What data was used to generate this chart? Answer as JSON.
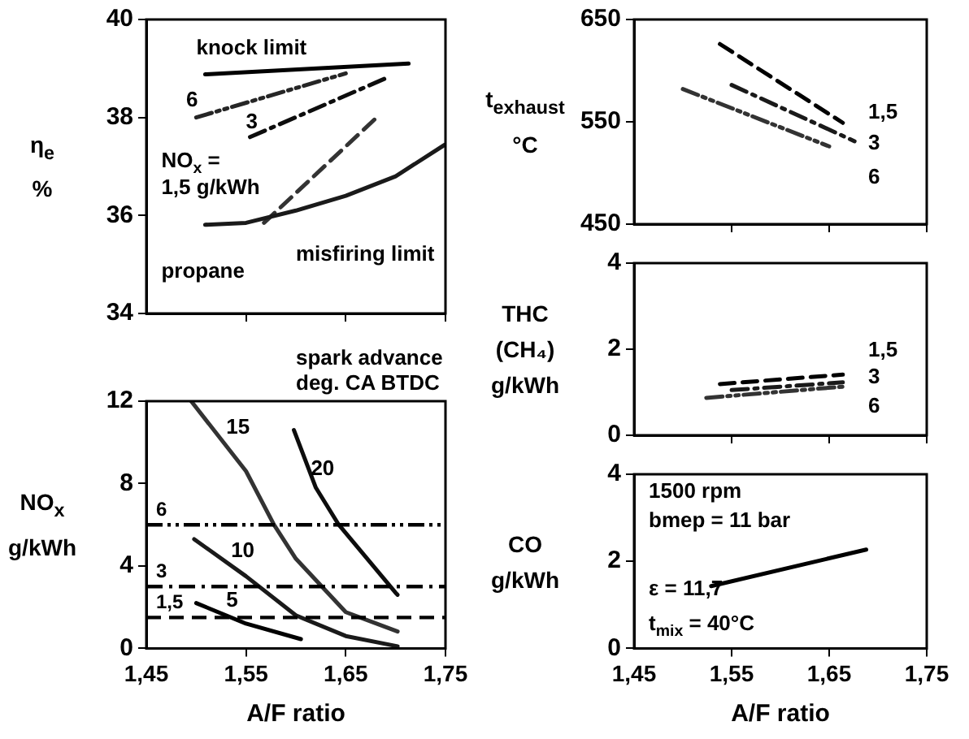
{
  "chart_data": [
    {
      "type": "line",
      "ylabel": "η$_{e}$ %",
      "xlim": [
        1.45,
        1.75
      ],
      "xticks": [
        {
          "value": 1.45,
          "label": null
        },
        {
          "value": 1.55,
          "label": null
        },
        {
          "value": 1.65,
          "label": null
        },
        {
          "value": 1.75,
          "label": null
        }
      ],
      "ylim": [
        34,
        40
      ],
      "yticks": [
        34,
        36,
        38,
        40
      ],
      "tick_labels": "y",
      "grid": false,
      "legend": false,
      "marker": "none",
      "series": [
        {
          "color": "#000000",
          "line_style": "solid",
          "x": [
            1.509,
            1.713
          ],
          "values": [
            38.88,
            39.1
          ]
        },
        {
          "color": "#1a1a1a",
          "line_style": "solid",
          "x": [
            1.509,
            1.55,
            1.6,
            1.65,
            1.7,
            1.749
          ],
          "values": [
            35.81,
            35.85,
            36.1,
            36.4,
            36.8,
            37.44
          ]
        },
        {
          "color": "#333333",
          "line_style": "dashed",
          "x": [
            1.568,
            1.681
          ],
          "values": [
            35.85,
            38.0
          ]
        },
        {
          "color": "#0d0d0d",
          "line_style": "dashdot",
          "x": [
            1.554,
            1.69
          ],
          "values": [
            37.6,
            38.8
          ]
        },
        {
          "color": "#262626",
          "line_style": "dashdotdot",
          "x": [
            1.5,
            1.65
          ],
          "values": [
            38.0,
            38.9
          ]
        }
      ],
      "annotations": [
        "propane",
        "knock limit",
        "misfiring limit",
        "6",
        "3",
        "NO$_{x}$ =",
        "1,5 g/kWh"
      ]
    },
    {
      "type": "line",
      "ylabel": "NO$_{x}$ g/kWh",
      "xlabel": "A/F ratio",
      "xlim": [
        1.45,
        1.75
      ],
      "xticks": [
        {
          "value": 1.45,
          "label": "1,45"
        },
        {
          "value": 1.55,
          "label": "1,55"
        },
        {
          "value": 1.65,
          "label": "1,65"
        },
        {
          "value": 1.75,
          "label": "1,75"
        }
      ],
      "ylim": [
        0,
        12
      ],
      "yticks": [
        0,
        4,
        8,
        12
      ],
      "grid": false,
      "legend": false,
      "marker": "none",
      "series": [
        {
          "color": "#000000",
          "line_style": "solid",
          "x": [
            1.5,
            1.55,
            1.605
          ],
          "values": [
            2.2,
            1.2,
            0.45
          ]
        },
        {
          "color": "#1a1a1a",
          "line_style": "solid",
          "x": [
            1.498,
            1.55,
            1.6,
            1.65,
            1.702
          ],
          "values": [
            5.3,
            3.5,
            1.6,
            0.6,
            0.1
          ]
        },
        {
          "color": "#333333",
          "line_style": "solid",
          "x": [
            1.495,
            1.55,
            1.578,
            1.6,
            1.65,
            1.702
          ],
          "values": [
            12,
            8.6,
            6,
            4.35,
            1.76,
            0.82
          ]
        },
        {
          "color": "#0d0d0d",
          "line_style": "solid",
          "x": [
            1.598,
            1.62,
            1.643,
            1.7,
            1.702
          ],
          "values": [
            10.6,
            7.8,
            6,
            2.7,
            2.6
          ]
        }
      ],
      "ref_lines": [
        {
          "axis": "y",
          "value": 6,
          "label": "6",
          "line_style": "dashdotdot"
        },
        {
          "axis": "y",
          "value": 3,
          "label": "3",
          "line_style": "dashdot"
        },
        {
          "axis": "y",
          "value": 1.5,
          "label": "1,5",
          "line_style": "dashed"
        }
      ],
      "annotations": [
        "spark advance",
        "deg. CA BTDC",
        "15",
        "20",
        "10",
        "5"
      ]
    },
    {
      "type": "line",
      "ylabel": "t$_{exhaust}$ °C",
      "xlim": [
        1.45,
        1.75
      ],
      "xticks": [
        {
          "value": 1.45,
          "label": null
        },
        {
          "value": 1.55,
          "label": null
        },
        {
          "value": 1.65,
          "label": null
        },
        {
          "value": 1.75,
          "label": null
        }
      ],
      "ylim": [
        450,
        650
      ],
      "yticks": [
        450,
        550,
        650
      ],
      "tick_labels": "y",
      "grid": false,
      "legend": false,
      "marker": "none",
      "series": [
        {
          "color": "#000000",
          "line_style": "dashed",
          "x": [
            1.538,
            1.664
          ],
          "values": [
            626,
            549
          ]
        },
        {
          "color": "#1a1a1a",
          "line_style": "dashdot",
          "x": [
            1.55,
            1.676
          ],
          "values": [
            586,
            531
          ]
        },
        {
          "color": "#333333",
          "line_style": "dashdotdot",
          "x": [
            1.5,
            1.65
          ],
          "values": [
            582,
            526
          ]
        }
      ],
      "annotations": [
        "1,5",
        "3",
        "6"
      ]
    },
    {
      "type": "line",
      "ylabel": "THC (CH₄) g/kWh",
      "xlim": [
        1.45,
        1.75
      ],
      "xticks": [
        {
          "value": 1.45,
          "label": null
        },
        {
          "value": 1.55,
          "label": null
        },
        {
          "value": 1.65,
          "label": null
        },
        {
          "value": 1.75,
          "label": null
        }
      ],
      "ylim": [
        0,
        4
      ],
      "yticks": [
        0,
        2,
        4
      ],
      "tick_labels": "y",
      "grid": false,
      "legend": false,
      "marker": "none",
      "series": [
        {
          "color": "#000000",
          "line_style": "dashed",
          "x": [
            1.538,
            1.664
          ],
          "values": [
            1.19,
            1.41
          ]
        },
        {
          "color": "#1a1a1a",
          "line_style": "dashdot",
          "x": [
            1.55,
            1.664
          ],
          "values": [
            1.05,
            1.23
          ]
        },
        {
          "color": "#333333",
          "line_style": "dashdotdot",
          "x": [
            1.524,
            1.664
          ],
          "values": [
            0.87,
            1.13
          ]
        }
      ],
      "annotations": [
        "1,5",
        "3",
        "6"
      ]
    },
    {
      "type": "line",
      "ylabel": "CO g/kWh",
      "xlabel": "A/F ratio",
      "xlim": [
        1.45,
        1.75
      ],
      "xticks": [
        {
          "value": 1.45,
          "label": "1,45"
        },
        {
          "value": 1.55,
          "label": "1,55"
        },
        {
          "value": 1.65,
          "label": "1,65"
        },
        {
          "value": 1.75,
          "label": "1,75"
        }
      ],
      "ylim": [
        0,
        4
      ],
      "yticks": [
        0,
        2,
        4
      ],
      "grid": false,
      "legend": false,
      "marker": "none",
      "series": [
        {
          "color": "#000000",
          "line_style": "solid",
          "x": [
            1.529,
            1.688
          ],
          "values": [
            1.43,
            2.27
          ]
        }
      ],
      "annotations": [
        "1500 rpm",
        "bmep = 11 bar",
        "ε = 11,7",
        "t$_{mix}$ = 40°C"
      ]
    }
  ]
}
